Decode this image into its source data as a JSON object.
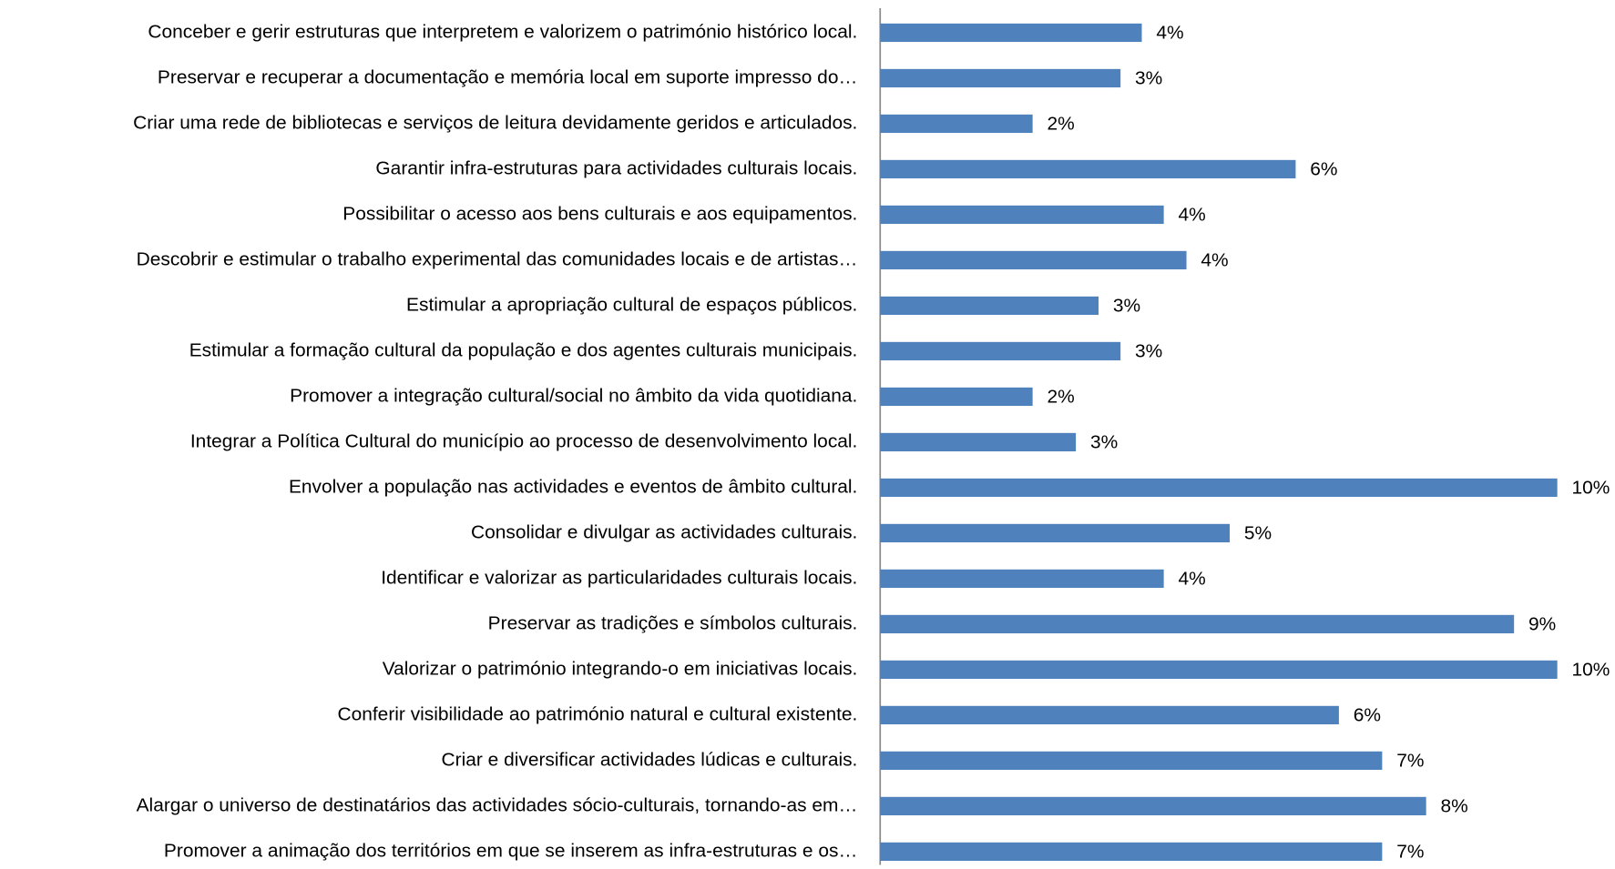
{
  "chart_data": {
    "type": "bar",
    "orientation": "horizontal",
    "color": "#4f81bd",
    "categories": [
      "Conceber e gerir estruturas que interpretem e valorizem o património histórico local.",
      "Preservar e recuperar a documentação e memória local em suporte impresso do…",
      "Criar uma rede de bibliotecas e serviços de leitura devidamente geridos e articulados.",
      "Garantir infra-estruturas para actividades culturais locais.",
      "Possibilitar o acesso aos bens culturais e aos equipamentos.",
      "Descobrir e estimular o trabalho experimental das comunidades locais e de artistas…",
      "Estimular a apropriação cultural de espaços públicos.",
      "Estimular a formação cultural da população e dos agentes culturais municipais.",
      "Promover a integração cultural/social no âmbito da vida quotidiana.",
      "Integrar a Política Cultural do município ao processo de desenvolvimento local.",
      "Envolver a população nas actividades e eventos de âmbito cultural.",
      "Consolidar e divulgar as actividades culturais.",
      "Identificar e valorizar as particularidades culturais locais.",
      "Preservar as tradições e símbolos culturais.",
      "Valorizar o património integrando-o em iniciativas locais.",
      "Conferir visibilidade ao património natural e cultural existente.",
      "Criar e diversificar actividades lúdicas e culturais.",
      "Alargar o universo de destinatários das actividades sócio-culturais, tornando-as em…",
      "Promover a animação dos territórios em que se inserem as infra-estruturas e os…"
    ],
    "values": [
      3.69,
      3.39,
      2.15,
      5.86,
      4.0,
      4.32,
      3.08,
      3.39,
      2.15,
      2.76,
      9.55,
      4.93,
      4.0,
      8.94,
      9.55,
      6.47,
      7.08,
      7.7,
      7.08
    ],
    "value_labels": [
      "4%",
      "3%",
      "2%",
      "6%",
      "4%",
      "4%",
      "3%",
      "3%",
      "2%",
      "3%",
      "10%",
      "5%",
      "4%",
      "9%",
      "10%",
      "6%",
      "7%",
      "8%",
      "7%"
    ]
  }
}
